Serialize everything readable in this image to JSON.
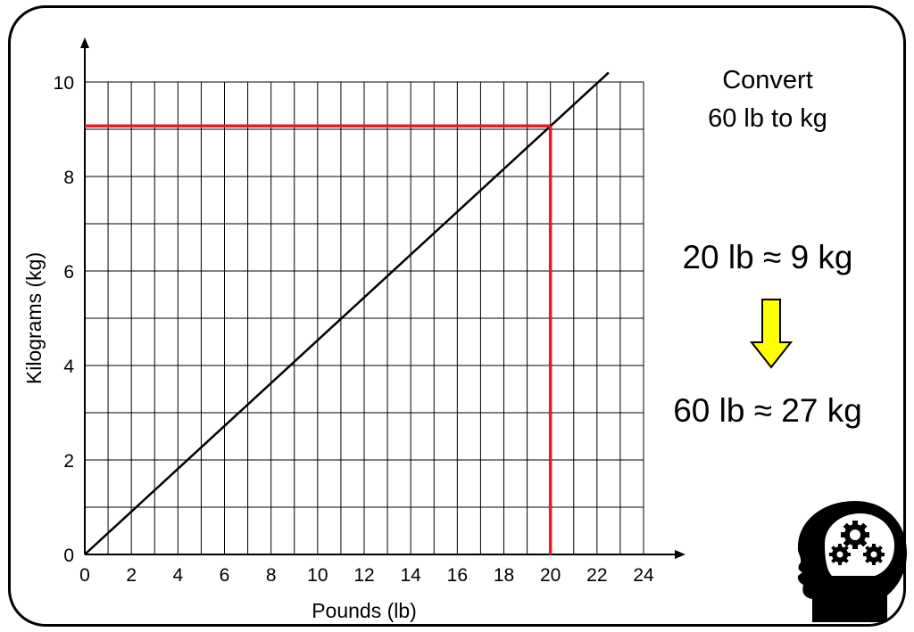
{
  "chart_data": {
    "type": "line",
    "xlabel": "Pounds (lb)",
    "ylabel": "Kilograms (kg)",
    "xlim": [
      0,
      24
    ],
    "ylim": [
      0,
      10
    ],
    "x_ticks": [
      "0",
      "2",
      "4",
      "6",
      "8",
      "10",
      "12",
      "14",
      "16",
      "18",
      "20",
      "22",
      "24"
    ],
    "y_ticks": [
      "0",
      "2",
      "4",
      "6",
      "8",
      "10"
    ],
    "grid": true,
    "series": [
      {
        "x": [
          0,
          22.5
        ],
        "y": [
          0,
          10.2
        ],
        "color": "#000000"
      }
    ],
    "reading": {
      "x": 20,
      "y": 9.07,
      "color": "#e51c23"
    }
  },
  "panel": {
    "task_line1": "Convert",
    "task_line2": "60 lb to kg",
    "fact": "20 lb ≈ 9 kg",
    "result": "60 lb ≈ 27 kg",
    "arrow_color": "#ffff00",
    "arrow_icon": "down-arrow-icon",
    "head_icon": "head-with-gears-icon"
  }
}
